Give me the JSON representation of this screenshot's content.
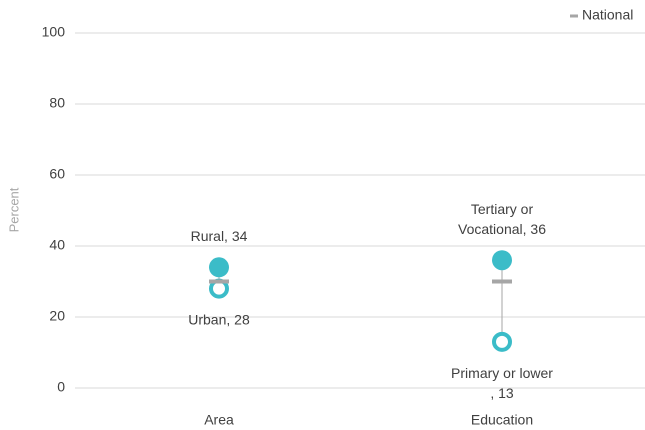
{
  "chart_data": {
    "type": "dot",
    "ylabel": "Percent",
    "categories": [
      "Area",
      "Education"
    ],
    "ylim": [
      0,
      100
    ],
    "yticks": [
      0,
      20,
      40,
      60,
      80,
      100
    ],
    "grid": true,
    "series": [
      {
        "values": [
          34,
          36
        ],
        "value_labels": [
          "Rural, 34",
          "Tertiary or\nVocational, 36"
        ],
        "color": "#3bbcc8",
        "marker": "filled",
        "label_side": "above"
      },
      {
        "values": [
          28,
          13
        ],
        "value_labels": [
          "Urban, 28",
          "Primary or lower\n, 13"
        ],
        "color": "#3bbcc8",
        "marker": "hollow",
        "label_side": "below"
      },
      {
        "name": "National",
        "values": [
          30,
          30
        ],
        "color": "#a6a6a6",
        "marker": "dash"
      }
    ],
    "legend": "top-right"
  }
}
